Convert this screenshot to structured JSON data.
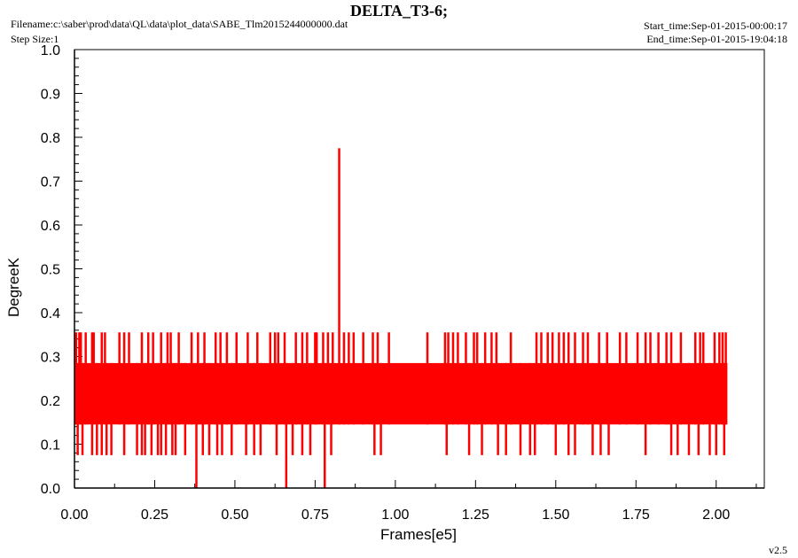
{
  "header": {
    "title": "DELTA_T3-6;",
    "filename": "Filename:c:\\saber\\prod\\data\\QL\\data\\plot_data\\SABE_Tlm2015244000000.dat",
    "step_size": "Step Size:1",
    "start_time": "Start_time:Sep-01-2015-00:00:17",
    "end_time": "End_time:Sep-01-2015-19:04:18"
  },
  "footer": {
    "version": "v2.5"
  },
  "colors": {
    "series": "#ff0000",
    "axis": "#000000",
    "background": "#ffffff"
  },
  "chart_data": {
    "type": "line",
    "title": "DELTA_T3-6;",
    "xlabel": "Frames[e5]",
    "ylabel": "DegreeK",
    "xlim": [
      0,
      2.15
    ],
    "ylim": [
      0,
      1.0
    ],
    "xticks": [
      "0.00",
      "0.25",
      "0.50",
      "0.75",
      "1.00",
      "1.25",
      "1.50",
      "1.75",
      "2.00"
    ],
    "yticks": [
      "0.0",
      "0.1",
      "0.2",
      "0.3",
      "0.4",
      "0.5",
      "0.6",
      "0.7",
      "0.8",
      "0.9",
      "1.0"
    ],
    "grid": false,
    "series": [
      {
        "color": "#ff0000",
        "band": {
          "x": [
            0.0,
            2.035
          ],
          "y": [
            0.145,
            0.285
          ]
        },
        "spikes_high": [
          [
            0.005,
            0.355
          ],
          [
            0.015,
            0.355
          ],
          [
            0.02,
            0.355
          ],
          [
            0.035,
            0.355
          ],
          [
            0.055,
            0.355
          ],
          [
            0.06,
            0.355
          ],
          [
            0.085,
            0.355
          ],
          [
            0.095,
            0.355
          ],
          [
            0.14,
            0.355
          ],
          [
            0.155,
            0.355
          ],
          [
            0.17,
            0.355
          ],
          [
            0.21,
            0.355
          ],
          [
            0.23,
            0.355
          ],
          [
            0.245,
            0.355
          ],
          [
            0.27,
            0.355
          ],
          [
            0.29,
            0.355
          ],
          [
            0.3,
            0.355
          ],
          [
            0.325,
            0.355
          ],
          [
            0.365,
            0.355
          ],
          [
            0.385,
            0.355
          ],
          [
            0.405,
            0.355
          ],
          [
            0.44,
            0.355
          ],
          [
            0.455,
            0.355
          ],
          [
            0.475,
            0.355
          ],
          [
            0.505,
            0.355
          ],
          [
            0.54,
            0.355
          ],
          [
            0.57,
            0.355
          ],
          [
            0.61,
            0.355
          ],
          [
            0.625,
            0.355
          ],
          [
            0.635,
            0.355
          ],
          [
            0.655,
            0.355
          ],
          [
            0.69,
            0.355
          ],
          [
            0.71,
            0.355
          ],
          [
            0.725,
            0.355
          ],
          [
            0.75,
            0.355
          ],
          [
            0.755,
            0.355
          ],
          [
            0.775,
            0.355
          ],
          [
            0.79,
            0.355
          ],
          [
            0.805,
            0.355
          ],
          [
            0.825,
            0.775
          ],
          [
            0.84,
            0.355
          ],
          [
            0.855,
            0.355
          ],
          [
            0.87,
            0.355
          ],
          [
            0.9,
            0.355
          ],
          [
            0.93,
            0.355
          ],
          [
            0.945,
            0.355
          ],
          [
            0.98,
            0.355
          ],
          [
            1.1,
            0.355
          ],
          [
            1.155,
            0.355
          ],
          [
            1.165,
            0.355
          ],
          [
            1.18,
            0.355
          ],
          [
            1.195,
            0.355
          ],
          [
            1.22,
            0.355
          ],
          [
            1.245,
            0.355
          ],
          [
            1.255,
            0.355
          ],
          [
            1.28,
            0.355
          ],
          [
            1.3,
            0.355
          ],
          [
            1.315,
            0.355
          ],
          [
            1.36,
            0.355
          ],
          [
            1.44,
            0.355
          ],
          [
            1.455,
            0.355
          ],
          [
            1.475,
            0.355
          ],
          [
            1.49,
            0.355
          ],
          [
            1.51,
            0.355
          ],
          [
            1.525,
            0.355
          ],
          [
            1.54,
            0.355
          ],
          [
            1.56,
            0.355
          ],
          [
            1.585,
            0.355
          ],
          [
            1.6,
            0.355
          ],
          [
            1.635,
            0.355
          ],
          [
            1.66,
            0.355
          ],
          [
            1.7,
            0.355
          ],
          [
            1.72,
            0.355
          ],
          [
            1.755,
            0.355
          ],
          [
            1.78,
            0.355
          ],
          [
            1.795,
            0.355
          ],
          [
            1.82,
            0.355
          ],
          [
            1.845,
            0.355
          ],
          [
            1.86,
            0.355
          ],
          [
            1.89,
            0.355
          ],
          [
            1.935,
            0.355
          ],
          [
            1.95,
            0.355
          ],
          [
            1.96,
            0.355
          ],
          [
            1.995,
            0.355
          ],
          [
            2.01,
            0.355
          ],
          [
            2.02,
            0.355
          ],
          [
            2.03,
            0.355
          ]
        ],
        "spikes_low": [
          [
            0.01,
            0.075
          ],
          [
            0.025,
            0.075
          ],
          [
            0.055,
            0.075
          ],
          [
            0.07,
            0.075
          ],
          [
            0.085,
            0.075
          ],
          [
            0.1,
            0.075
          ],
          [
            0.115,
            0.075
          ],
          [
            0.155,
            0.075
          ],
          [
            0.195,
            0.075
          ],
          [
            0.21,
            0.075
          ],
          [
            0.22,
            0.075
          ],
          [
            0.24,
            0.075
          ],
          [
            0.26,
            0.075
          ],
          [
            0.27,
            0.075
          ],
          [
            0.285,
            0.075
          ],
          [
            0.305,
            0.075
          ],
          [
            0.315,
            0.075
          ],
          [
            0.345,
            0.075
          ],
          [
            0.38,
            0.0
          ],
          [
            0.4,
            0.075
          ],
          [
            0.42,
            0.075
          ],
          [
            0.445,
            0.075
          ],
          [
            0.46,
            0.075
          ],
          [
            0.49,
            0.075
          ],
          [
            0.535,
            0.075
          ],
          [
            0.56,
            0.075
          ],
          [
            0.58,
            0.075
          ],
          [
            0.63,
            0.075
          ],
          [
            0.66,
            0.0
          ],
          [
            0.68,
            0.075
          ],
          [
            0.71,
            0.075
          ],
          [
            0.735,
            0.075
          ],
          [
            0.78,
            0.0
          ],
          [
            0.8,
            0.075
          ],
          [
            0.935,
            0.075
          ],
          [
            0.955,
            0.075
          ],
          [
            1.16,
            0.075
          ],
          [
            1.23,
            0.075
          ],
          [
            1.27,
            0.075
          ],
          [
            1.32,
            0.075
          ],
          [
            1.345,
            0.075
          ],
          [
            1.39,
            0.075
          ],
          [
            1.42,
            0.075
          ],
          [
            1.435,
            0.075
          ],
          [
            1.5,
            0.075
          ],
          [
            1.54,
            0.075
          ],
          [
            1.56,
            0.075
          ],
          [
            1.615,
            0.075
          ],
          [
            1.64,
            0.075
          ],
          [
            1.665,
            0.075
          ],
          [
            1.78,
            0.075
          ],
          [
            1.86,
            0.075
          ],
          [
            1.88,
            0.075
          ],
          [
            1.915,
            0.075
          ],
          [
            1.945,
            0.075
          ],
          [
            1.98,
            0.075
          ],
          [
            2.0,
            0.075
          ],
          [
            2.025,
            0.075
          ]
        ]
      }
    ]
  }
}
